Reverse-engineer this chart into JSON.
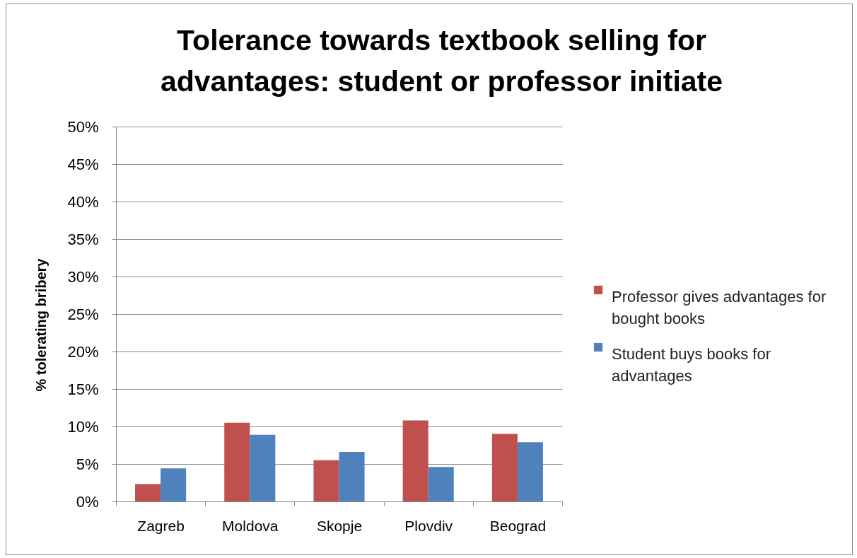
{
  "chart_data": {
    "type": "bar",
    "title": "Tolerance towards textbook selling for\nadvantages: student or professor initiate",
    "ylabel": "% tolerating bribery",
    "categories": [
      "Zagreb",
      "Moldova",
      "Skopje",
      "Plovdiv",
      "Beograd"
    ],
    "series": [
      {
        "name": "Professor gives advantages for bought books",
        "color": "#c0504d",
        "values": [
          2.3,
          10.5,
          5.5,
          10.8,
          9.0
        ]
      },
      {
        "name": "Student buys books for advantages",
        "color": "#4f81bd",
        "values": [
          4.4,
          8.9,
          6.6,
          4.6,
          7.9
        ]
      }
    ],
    "ylim": [
      0,
      50
    ],
    "yticks": [
      {
        "value": 0,
        "label": "0%"
      },
      {
        "value": 5,
        "label": "5%"
      },
      {
        "value": 10,
        "label": "10%"
      },
      {
        "value": 15,
        "label": "15%"
      },
      {
        "value": 20,
        "label": "20%"
      },
      {
        "value": 25,
        "label": "25%"
      },
      {
        "value": 30,
        "label": "30%"
      },
      {
        "value": 35,
        "label": "35%"
      },
      {
        "value": 40,
        "label": "40%"
      },
      {
        "value": 45,
        "label": "45%"
      },
      {
        "value": 50,
        "label": "50%"
      }
    ],
    "grid": "y",
    "legend": "right"
  }
}
